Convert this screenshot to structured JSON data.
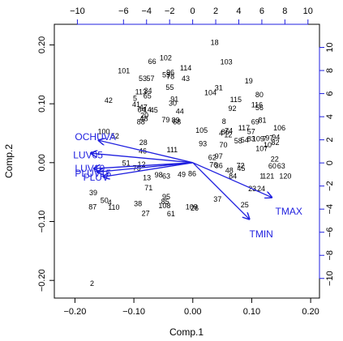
{
  "chart_data": {
    "type": "scatter",
    "subtype": "pca-biplot",
    "xlabel": "Comp.1",
    "ylabel": "Comp.2",
    "primary_axes": {
      "x_ticks": [
        -0.2,
        -0.1,
        0.0,
        0.1,
        0.2
      ],
      "x_tick_labels": [
        "−0.20",
        "−0.10",
        "0.00",
        "0.10",
        "0.20"
      ],
      "y_ticks": [
        -0.2,
        -0.1,
        0.0,
        0.1,
        0.2
      ],
      "y_tick_labels": [
        "−0.20",
        "−0.10",
        "0.00",
        "0.10",
        "0.20"
      ]
    },
    "secondary_axes": {
      "x_ticks": [
        -10,
        -6,
        -4,
        -2,
        0,
        2,
        4,
        6,
        8,
        10
      ],
      "x_tick_labels": [
        "−10",
        "−6",
        "−4",
        "−2",
        "0",
        "2",
        "4",
        "6",
        "8",
        "10"
      ],
      "y_ticks": [
        -10,
        -8,
        -6,
        -4,
        -2,
        0,
        2,
        4,
        6,
        8,
        10
      ],
      "y_tick_labels": [
        "−10",
        "−8",
        "−6",
        "−4",
        "−2",
        "0",
        "2",
        "4",
        "6",
        "8",
        "10"
      ]
    },
    "xlim": [
      -0.235,
      0.215
    ],
    "ylim": [
      -0.23,
      0.235
    ],
    "secondary_xlim": [
      -12.0,
      11.0
    ],
    "secondary_ylim": [
      -11.7,
      12.0
    ],
    "grid": false,
    "point_color": "#000000",
    "vector_color": "#1f1fdf",
    "points": [
      {
        "label": "18",
        "x": 0.037,
        "y": 0.204
      },
      {
        "label": "102",
        "x": -0.046,
        "y": 0.178
      },
      {
        "label": "66",
        "x": -0.069,
        "y": 0.172
      },
      {
        "label": "103",
        "x": 0.057,
        "y": 0.171
      },
      {
        "label": "114",
        "x": -0.012,
        "y": 0.161
      },
      {
        "label": "101",
        "x": -0.117,
        "y": 0.156
      },
      {
        "label": "96",
        "x": -0.038,
        "y": 0.153
      },
      {
        "label": "59",
        "x": -0.045,
        "y": 0.149
      },
      {
        "label": "78",
        "x": -0.038,
        "y": 0.146
      },
      {
        "label": "53",
        "x": -0.085,
        "y": 0.143
      },
      {
        "label": "57",
        "x": -0.072,
        "y": 0.143
      },
      {
        "label": "43",
        "x": -0.012,
        "y": 0.143
      },
      {
        "label": "19",
        "x": 0.095,
        "y": 0.139
      },
      {
        "label": "55",
        "x": -0.039,
        "y": 0.128
      },
      {
        "label": "31",
        "x": 0.044,
        "y": 0.127
      },
      {
        "label": "113",
        "x": -0.088,
        "y": 0.12
      },
      {
        "label": "34",
        "x": -0.076,
        "y": 0.122
      },
      {
        "label": "104",
        "x": 0.03,
        "y": 0.119
      },
      {
        "label": "80",
        "x": 0.113,
        "y": 0.115
      },
      {
        "label": "65",
        "x": -0.077,
        "y": 0.113
      },
      {
        "label": "5",
        "x": -0.098,
        "y": 0.109
      },
      {
        "label": "91",
        "x": -0.031,
        "y": 0.108
      },
      {
        "label": "42",
        "x": -0.143,
        "y": 0.106
      },
      {
        "label": "115",
        "x": 0.073,
        "y": 0.107
      },
      {
        "label": "41",
        "x": -0.096,
        "y": 0.099
      },
      {
        "label": "30",
        "x": -0.034,
        "y": 0.101
      },
      {
        "label": "116",
        "x": 0.109,
        "y": 0.098
      },
      {
        "label": "56",
        "x": 0.113,
        "y": 0.093
      },
      {
        "label": "47",
        "x": -0.084,
        "y": 0.094
      },
      {
        "label": "64",
        "x": -0.087,
        "y": 0.09
      },
      {
        "label": "45",
        "x": -0.066,
        "y": 0.089
      },
      {
        "label": "14",
        "x": -0.077,
        "y": 0.09
      },
      {
        "label": "92",
        "x": 0.067,
        "y": 0.092
      },
      {
        "label": "44",
        "x": -0.022,
        "y": 0.087
      },
      {
        "label": "20",
        "x": -0.082,
        "y": 0.08
      },
      {
        "label": "48",
        "x": -0.083,
        "y": 0.075
      },
      {
        "label": "79",
        "x": -0.046,
        "y": 0.073
      },
      {
        "label": "89",
        "x": -0.029,
        "y": 0.072
      },
      {
        "label": "88",
        "x": -0.088,
        "y": 0.069
      },
      {
        "label": "68",
        "x": -0.027,
        "y": 0.069
      },
      {
        "label": "8",
        "x": 0.053,
        "y": 0.07
      },
      {
        "label": "81",
        "x": 0.118,
        "y": 0.072
      },
      {
        "label": "69",
        "x": 0.106,
        "y": 0.069
      },
      {
        "label": "117",
        "x": 0.087,
        "y": 0.059
      },
      {
        "label": "106",
        "x": 0.147,
        "y": 0.059
      },
      {
        "label": "100",
        "x": -0.151,
        "y": 0.053
      },
      {
        "label": "105",
        "x": 0.015,
        "y": 0.055
      },
      {
        "label": "74",
        "x": 0.061,
        "y": 0.054
      },
      {
        "label": "57",
        "x": 0.099,
        "y": 0.053
      },
      {
        "label": "52",
        "x": -0.132,
        "y": 0.045
      },
      {
        "label": "4",
        "x": 0.048,
        "y": 0.05
      },
      {
        "label": "86",
        "x": 0.055,
        "y": 0.052
      },
      {
        "label": "12",
        "x": 0.06,
        "y": 0.047
      },
      {
        "label": "94",
        "x": 0.141,
        "y": 0.043
      },
      {
        "label": "83",
        "x": 0.099,
        "y": 0.04
      },
      {
        "label": "109",
        "x": 0.111,
        "y": 0.04
      },
      {
        "label": "7",
        "x": 0.122,
        "y": 0.04
      },
      {
        "label": "97",
        "x": 0.13,
        "y": 0.042
      },
      {
        "label": "58",
        "x": 0.077,
        "y": 0.037
      },
      {
        "label": "54",
        "x": 0.088,
        "y": 0.038
      },
      {
        "label": "82",
        "x": 0.14,
        "y": 0.034
      },
      {
        "label": "28",
        "x": -0.084,
        "y": 0.034
      },
      {
        "label": "93",
        "x": 0.017,
        "y": 0.032
      },
      {
        "label": "70",
        "x": 0.052,
        "y": 0.03
      },
      {
        "label": "10",
        "x": 0.127,
        "y": 0.03
      },
      {
        "label": "107",
        "x": 0.117,
        "y": 0.024
      },
      {
        "label": "111",
        "x": -0.035,
        "y": 0.022
      },
      {
        "label": "46",
        "x": -0.085,
        "y": 0.02
      },
      {
        "label": "97",
        "x": 0.044,
        "y": 0.011
      },
      {
        "label": "62",
        "x": 0.033,
        "y": 0.009
      },
      {
        "label": "22",
        "x": 0.139,
        "y": 0.006
      },
      {
        "label": "51",
        "x": -0.113,
        "y": -0.001
      },
      {
        "label": "12",
        "x": -0.087,
        "y": -0.003
      },
      {
        "label": "76",
        "x": 0.035,
        "y": -0.004
      },
      {
        "label": "36",
        "x": 0.044,
        "y": -0.005
      },
      {
        "label": "72",
        "x": 0.081,
        "y": -0.005
      },
      {
        "label": "60",
        "x": 0.135,
        "y": -0.006
      },
      {
        "label": "63",
        "x": 0.15,
        "y": -0.006
      },
      {
        "label": "75",
        "x": -0.095,
        "y": -0.009
      },
      {
        "label": "45",
        "x": 0.082,
        "y": -0.01
      },
      {
        "label": "48",
        "x": 0.062,
        "y": -0.013
      },
      {
        "label": "49",
        "x": -0.019,
        "y": -0.02
      },
      {
        "label": "86",
        "x": -0.001,
        "y": -0.019
      },
      {
        "label": "98",
        "x": -0.058,
        "y": -0.021
      },
      {
        "label": "63",
        "x": -0.045,
        "y": -0.023
      },
      {
        "label": "84",
        "x": 0.068,
        "y": -0.023
      },
      {
        "label": "1",
        "x": 0.117,
        "y": -0.023
      },
      {
        "label": "121",
        "x": 0.128,
        "y": -0.023
      },
      {
        "label": "120",
        "x": 0.157,
        "y": -0.023
      },
      {
        "label": "13",
        "x": -0.078,
        "y": -0.026
      },
      {
        "label": "71",
        "x": -0.075,
        "y": -0.043
      },
      {
        "label": "23",
        "x": 0.101,
        "y": -0.044
      },
      {
        "label": "24",
        "x": 0.116,
        "y": -0.044
      },
      {
        "label": "39",
        "x": -0.169,
        "y": -0.051
      },
      {
        "label": "95",
        "x": -0.045,
        "y": -0.058
      },
      {
        "label": "50",
        "x": -0.15,
        "y": -0.064
      },
      {
        "label": "4",
        "x": -0.141,
        "y": -0.068
      },
      {
        "label": "37",
        "x": 0.042,
        "y": -0.062
      },
      {
        "label": "85",
        "x": -0.047,
        "y": -0.066
      },
      {
        "label": "87",
        "x": -0.17,
        "y": -0.075
      },
      {
        "label": "110",
        "x": -0.134,
        "y": -0.076
      },
      {
        "label": "38",
        "x": -0.093,
        "y": -0.07
      },
      {
        "label": "108",
        "x": -0.048,
        "y": -0.073
      },
      {
        "label": "109",
        "x": -0.002,
        "y": -0.075
      },
      {
        "label": "26",
        "x": 0.003,
        "y": -0.077
      },
      {
        "label": "25",
        "x": 0.088,
        "y": -0.072
      },
      {
        "label": "27",
        "x": -0.08,
        "y": -0.086
      },
      {
        "label": "61",
        "x": -0.037,
        "y": -0.087
      },
      {
        "label": "2",
        "x": -0.171,
        "y": -0.205
      }
    ],
    "loadings": [
      {
        "name": "PLUVIOCHUVA",
        "label": "OCHUVA",
        "x": -0.16,
        "y": 0.038
      },
      {
        "name": "PLUV05",
        "label": "LUV05",
        "x": -0.173,
        "y": 0.016
      },
      {
        "name": "PLUV10",
        "label": "LUV10",
        "x": -0.168,
        "y": -0.01
      },
      {
        "name": "PLUV15",
        "label": "PLUV15",
        "x": -0.162,
        "y": -0.016
      },
      {
        "name": "PLUV",
        "label": "PLUV",
        "x": -0.152,
        "y": -0.024
      },
      {
        "name": "TMAX",
        "label": "TMAX",
        "x": 0.134,
        "y": -0.059
      },
      {
        "name": "TMIN",
        "label": "TMIN",
        "x": 0.096,
        "y": -0.096
      }
    ],
    "loading_labels": [
      {
        "text": "OCHUVA",
        "x": -0.2,
        "y": 0.044,
        "anchor": "start"
      },
      {
        "text": "LUV05",
        "x": -0.203,
        "y": 0.013,
        "anchor": "start"
      },
      {
        "text": "LUV10",
        "x": -0.2,
        "y": -0.01,
        "anchor": "start"
      },
      {
        "text": "PLUV15",
        "x": -0.2,
        "y": -0.018,
        "anchor": "start"
      },
      {
        "text": "PLUV",
        "x": -0.186,
        "y": -0.025,
        "anchor": "start"
      },
      {
        "text": "TMAX",
        "x": 0.14,
        "y": -0.083,
        "anchor": "start"
      },
      {
        "text": "TMIN",
        "x": 0.096,
        "y": -0.121,
        "anchor": "start"
      }
    ]
  }
}
